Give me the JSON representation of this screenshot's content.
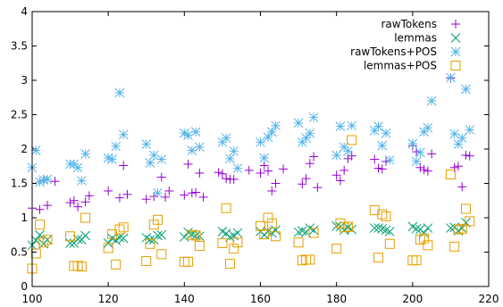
{
  "chart_data": {
    "type": "scatter",
    "xlim": [
      100,
      220
    ],
    "ylim": [
      0,
      4
    ],
    "x_ticks": [
      "100",
      "120",
      "140",
      "160",
      "180",
      "200",
      "220"
    ],
    "y_ticks": [
      "0",
      "0.5",
      "1",
      "1.5",
      "2",
      "2.5",
      "3",
      "3.5",
      "4"
    ],
    "grid": false,
    "legend_position": "top-right",
    "series": [
      {
        "name": "rawTokens",
        "marker": "plus",
        "color": "#9400d3",
        "points": [
          [
            100,
            1.14
          ],
          [
            102,
            1.12
          ],
          [
            103,
            1.55
          ],
          [
            104,
            1.18
          ],
          [
            106,
            1.53
          ],
          [
            110,
            1.22
          ],
          [
            111,
            1.25
          ],
          [
            112,
            1.16
          ],
          [
            114,
            1.23
          ],
          [
            115,
            1.32
          ],
          [
            120,
            1.39
          ],
          [
            123,
            1.29
          ],
          [
            124,
            1.76
          ],
          [
            125,
            1.34
          ],
          [
            130,
            1.27
          ],
          [
            132,
            1.31
          ],
          [
            134,
            1.59
          ],
          [
            135,
            1.3
          ],
          [
            136,
            1.39
          ],
          [
            140,
            1.33
          ],
          [
            141,
            1.78
          ],
          [
            142,
            1.36
          ],
          [
            143,
            1.37
          ],
          [
            144,
            1.65
          ],
          [
            145,
            1.3
          ],
          [
            149,
            1.66
          ],
          [
            150,
            1.64
          ],
          [
            151,
            1.57
          ],
          [
            152,
            1.56
          ],
          [
            153,
            1.56
          ],
          [
            157,
            1.69
          ],
          [
            160,
            1.65
          ],
          [
            161,
            1.76
          ],
          [
            162,
            1.68
          ],
          [
            163,
            1.39
          ],
          [
            164,
            1.5
          ],
          [
            166,
            1.71
          ],
          [
            171,
            1.49
          ],
          [
            172,
            1.57
          ],
          [
            173,
            1.79
          ],
          [
            174,
            1.89
          ],
          [
            175,
            1.44
          ],
          [
            180,
            1.62
          ],
          [
            181,
            1.54
          ],
          [
            182,
            1.69
          ],
          [
            183,
            1.86
          ],
          [
            184,
            1.9
          ],
          [
            190,
            1.85
          ],
          [
            191,
            1.72
          ],
          [
            192,
            1.71
          ],
          [
            193,
            1.82
          ],
          [
            200,
            2.05
          ],
          [
            201,
            1.96
          ],
          [
            202,
            1.73
          ],
          [
            203,
            1.7
          ],
          [
            204,
            1.68
          ],
          [
            205,
            1.93
          ],
          [
            210,
            3.03
          ],
          [
            211,
            1.73
          ],
          [
            212,
            1.75
          ],
          [
            213,
            1.45
          ],
          [
            214,
            1.91
          ],
          [
            215,
            1.9
          ]
        ]
      },
      {
        "name": "lemmas",
        "marker": "cross",
        "color": "#009e73",
        "points": [
          [
            100,
            0.6
          ],
          [
            101,
            0.67
          ],
          [
            102,
            0.75
          ],
          [
            103,
            0.62
          ],
          [
            104,
            0.68
          ],
          [
            110,
            0.63
          ],
          [
            111,
            0.63
          ],
          [
            112,
            0.69
          ],
          [
            113,
            0.68
          ],
          [
            114,
            0.74
          ],
          [
            120,
            0.63
          ],
          [
            121,
            0.7
          ],
          [
            122,
            0.67
          ],
          [
            123,
            0.71
          ],
          [
            124,
            0.7
          ],
          [
            130,
            0.71
          ],
          [
            131,
            0.68
          ],
          [
            132,
            0.68
          ],
          [
            133,
            0.74
          ],
          [
            134,
            0.75
          ],
          [
            140,
            0.72
          ],
          [
            141,
            0.79
          ],
          [
            142,
            0.76
          ],
          [
            143,
            0.74
          ],
          [
            144,
            0.73
          ],
          [
            150,
            0.8
          ],
          [
            151,
            0.77
          ],
          [
            152,
            0.72
          ],
          [
            153,
            0.74
          ],
          [
            154,
            0.78
          ],
          [
            160,
            0.8
          ],
          [
            161,
            0.75
          ],
          [
            162,
            0.8
          ],
          [
            163,
            0.78
          ],
          [
            164,
            0.82
          ],
          [
            170,
            0.79
          ],
          [
            171,
            0.81
          ],
          [
            172,
            0.79
          ],
          [
            173,
            0.85
          ],
          [
            174,
            0.82
          ],
          [
            180,
            0.88
          ],
          [
            181,
            0.87
          ],
          [
            182,
            0.82
          ],
          [
            183,
            0.86
          ],
          [
            184,
            0.83
          ],
          [
            190,
            0.85
          ],
          [
            191,
            0.85
          ],
          [
            192,
            0.84
          ],
          [
            193,
            0.82
          ],
          [
            194,
            0.8
          ],
          [
            200,
            0.87
          ],
          [
            201,
            0.84
          ],
          [
            202,
            0.83
          ],
          [
            203,
            0.78
          ],
          [
            204,
            0.85
          ],
          [
            210,
            0.85
          ],
          [
            211,
            0.86
          ],
          [
            212,
            0.81
          ],
          [
            213,
            0.85
          ],
          [
            214,
            0.93
          ]
        ]
      },
      {
        "name": "rawTokens+POS",
        "marker": "star",
        "color": "#56b4e9",
        "points": [
          [
            100,
            1.73
          ],
          [
            101,
            1.98
          ],
          [
            102,
            1.52
          ],
          [
            103,
            1.55
          ],
          [
            104,
            1.56
          ],
          [
            110,
            1.78
          ],
          [
            111,
            1.78
          ],
          [
            112,
            1.73
          ],
          [
            113,
            1.54
          ],
          [
            114,
            1.93
          ],
          [
            120,
            1.87
          ],
          [
            121,
            1.85
          ],
          [
            122,
            2.04
          ],
          [
            123,
            2.82
          ],
          [
            124,
            2.21
          ],
          [
            130,
            2.07
          ],
          [
            131,
            1.8
          ],
          [
            132,
            1.91
          ],
          [
            133,
            1.36
          ],
          [
            134,
            1.85
          ],
          [
            140,
            2.23
          ],
          [
            141,
            2.2
          ],
          [
            142,
            1.98
          ],
          [
            143,
            2.25
          ],
          [
            144,
            2.03
          ],
          [
            150,
            2.1
          ],
          [
            151,
            2.16
          ],
          [
            152,
            1.86
          ],
          [
            153,
            1.97
          ],
          [
            154,
            1.72
          ],
          [
            160,
            2.1
          ],
          [
            161,
            1.87
          ],
          [
            162,
            2.17
          ],
          [
            163,
            2.25
          ],
          [
            164,
            2.34
          ],
          [
            170,
            2.38
          ],
          [
            171,
            2.1
          ],
          [
            172,
            2.16
          ],
          [
            173,
            2.23
          ],
          [
            174,
            2.46
          ],
          [
            180,
            1.91
          ],
          [
            181,
            2.33
          ],
          [
            182,
            2.03
          ],
          [
            183,
            1.97
          ],
          [
            184,
            2.34
          ],
          [
            190,
            2.27
          ],
          [
            191,
            2.33
          ],
          [
            192,
            2.05
          ],
          [
            193,
            2.23
          ],
          [
            194,
            1.84
          ],
          [
            200,
            2.08
          ],
          [
            201,
            1.82
          ],
          [
            202,
            1.95
          ],
          [
            203,
            2.25
          ],
          [
            204,
            2.31
          ],
          [
            205,
            2.7
          ],
          [
            210,
            3.04
          ],
          [
            211,
            2.22
          ],
          [
            212,
            2.07
          ],
          [
            213,
            2.16
          ],
          [
            214,
            2.87
          ],
          [
            215,
            2.28
          ]
        ]
      },
      {
        "name": "lemmas+POS",
        "marker": "square",
        "color": "#e69f00",
        "points": [
          [
            100,
            0.26
          ],
          [
            101,
            0.48
          ],
          [
            102,
            0.9
          ],
          [
            103,
            0.64
          ],
          [
            104,
            0.68
          ],
          [
            110,
            0.73
          ],
          [
            111,
            0.3
          ],
          [
            112,
            0.3
          ],
          [
            113,
            0.29
          ],
          [
            114,
            1.0
          ],
          [
            120,
            0.56
          ],
          [
            121,
            0.76
          ],
          [
            122,
            0.32
          ],
          [
            123,
            0.83
          ],
          [
            124,
            0.86
          ],
          [
            130,
            0.37
          ],
          [
            131,
            0.62
          ],
          [
            132,
            0.9
          ],
          [
            133,
            0.97
          ],
          [
            134,
            0.47
          ],
          [
            140,
            0.36
          ],
          [
            141,
            0.36
          ],
          [
            142,
            0.75
          ],
          [
            143,
            0.74
          ],
          [
            144,
            0.59
          ],
          [
            150,
            0.63
          ],
          [
            151,
            1.14
          ],
          [
            152,
            0.33
          ],
          [
            153,
            0.55
          ],
          [
            154,
            0.64
          ],
          [
            160,
            0.88
          ],
          [
            161,
            0.76
          ],
          [
            162,
            1.0
          ],
          [
            163,
            0.92
          ],
          [
            164,
            0.73
          ],
          [
            170,
            0.64
          ],
          [
            171,
            0.38
          ],
          [
            172,
            0.39
          ],
          [
            173,
            0.39
          ],
          [
            174,
            0.78
          ],
          [
            180,
            0.55
          ],
          [
            181,
            0.92
          ],
          [
            182,
            0.86
          ],
          [
            183,
            0.87
          ],
          [
            184,
            2.13
          ],
          [
            190,
            1.11
          ],
          [
            191,
            0.42
          ],
          [
            192,
            1.05
          ],
          [
            193,
            1.02
          ],
          [
            194,
            0.62
          ],
          [
            200,
            0.38
          ],
          [
            201,
            0.38
          ],
          [
            202,
            0.68
          ],
          [
            203,
            0.7
          ],
          [
            204,
            0.6
          ],
          [
            210,
            1.63
          ],
          [
            211,
            0.58
          ],
          [
            212,
            0.83
          ],
          [
            213,
            0.84
          ],
          [
            214,
            1.13
          ],
          [
            215,
            0.95
          ]
        ]
      }
    ]
  }
}
